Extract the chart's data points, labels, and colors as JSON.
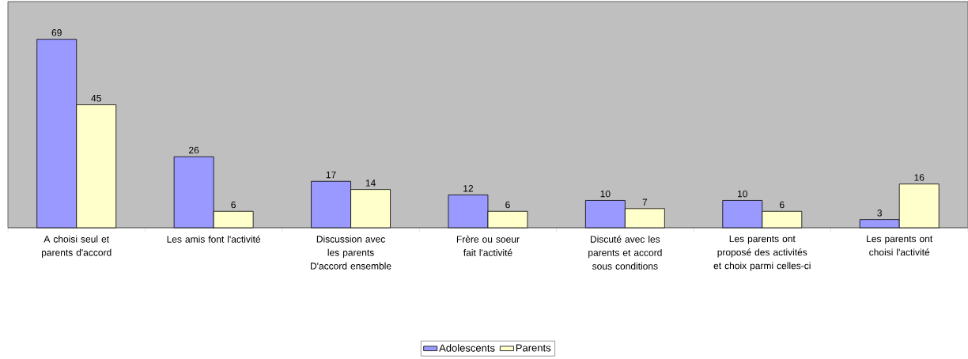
{
  "chart_data": {
    "type": "bar",
    "categories": [
      "A choisi seul et parents d'accord",
      "Les amis font l'activité",
      "Discussion avec les parents D'accord ensemble",
      "Frère ou soeur fait l'activité",
      "Discuté avec les parents et accord sous conditions",
      "Les parents ont proposé des activités et choix parmi celles-ci",
      "Les parents ont choisi l'activité"
    ],
    "series": [
      {
        "name": "Adolescents",
        "color": "#9999ff",
        "values": [
          69,
          26,
          17,
          12,
          10,
          10,
          3
        ]
      },
      {
        "name": "Parents",
        "color": "#ffffcc",
        "values": [
          45,
          6,
          14,
          6,
          7,
          6,
          16
        ]
      }
    ],
    "data_labels": true,
    "legend": "bottom"
  }
}
